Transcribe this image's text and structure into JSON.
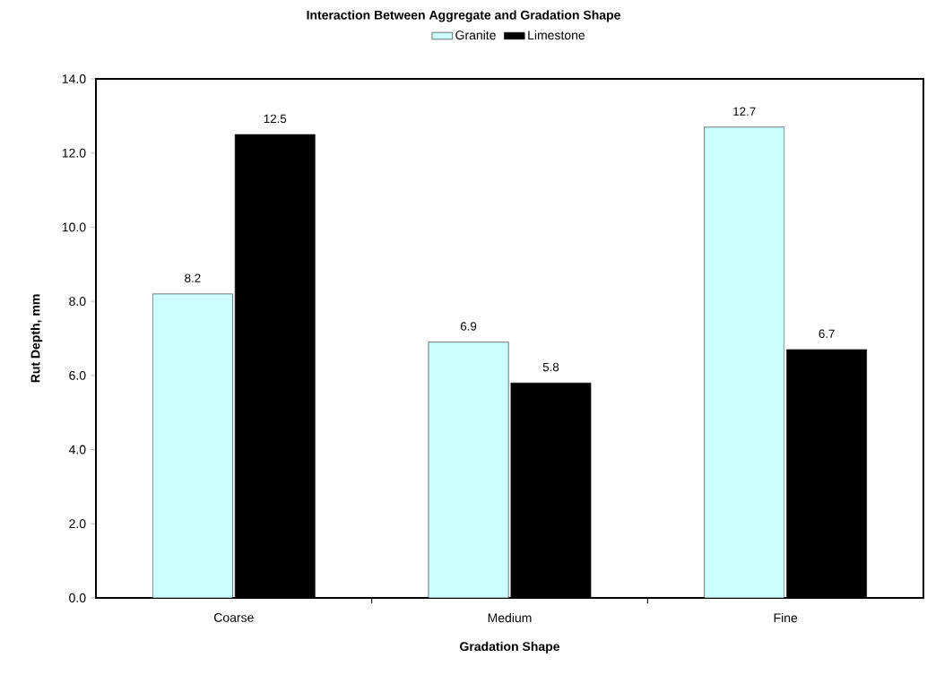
{
  "chart_data": {
    "type": "bar",
    "title": "Interaction Between Aggregate and Gradation Shape",
    "xlabel": "Gradation Shape",
    "ylabel": "Rut Depth, mm",
    "categories": [
      "Coarse",
      "Medium",
      "Fine"
    ],
    "series": [
      {
        "name": "Granite",
        "color": "#ccffff",
        "values": [
          8.2,
          6.9,
          12.7
        ]
      },
      {
        "name": "Limestone",
        "color": "#000000",
        "values": [
          12.5,
          5.8,
          6.7
        ]
      }
    ],
    "ylim": [
      0,
      14
    ],
    "yticks": [
      {
        "value": 0,
        "label": "0.0"
      },
      {
        "value": 2,
        "label": "2.0"
      },
      {
        "value": 4,
        "label": "4.0"
      },
      {
        "value": 6,
        "label": "6.0"
      },
      {
        "value": 8,
        "label": "8.0"
      },
      {
        "value": 10,
        "label": "10.0"
      },
      {
        "value": 12,
        "label": "12.0"
      },
      {
        "value": 14,
        "label": "14.0"
      }
    ],
    "data_labels": true,
    "legend": "top",
    "grid": false
  }
}
